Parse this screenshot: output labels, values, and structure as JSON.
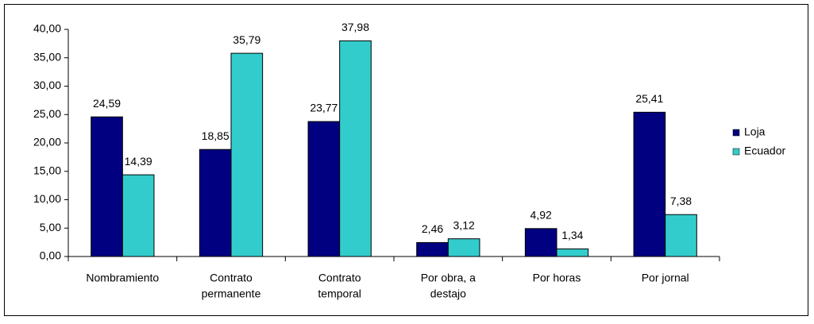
{
  "chart_data": {
    "type": "bar",
    "categories": [
      [
        "Nombramiento"
      ],
      [
        "Contrato",
        "permanente"
      ],
      [
        "Contrato",
        "temporal"
      ],
      [
        "Por obra, a",
        "destajo"
      ],
      [
        "Por horas"
      ],
      [
        "Por jornal"
      ]
    ],
    "series": [
      {
        "name": "Loja",
        "color": "#000080",
        "values": [
          24.59,
          18.85,
          23.77,
          2.46,
          4.92,
          25.41
        ],
        "value_labels": [
          "24,59",
          "18,85",
          "23,77",
          "2,46",
          "4,92",
          "25,41"
        ]
      },
      {
        "name": "Ecuador",
        "color": "#33cccc",
        "values": [
          14.39,
          35.79,
          37.98,
          3.12,
          1.34,
          7.38
        ],
        "value_labels": [
          "14,39",
          "35,79",
          "37,98",
          "3,12",
          "1,34",
          "7,38"
        ]
      }
    ],
    "ylim": [
      0,
      40
    ],
    "yticks": [
      {
        "value": 0,
        "label": "0,00"
      },
      {
        "value": 5,
        "label": "5,00"
      },
      {
        "value": 10,
        "label": "10,00"
      },
      {
        "value": 15,
        "label": "15,00"
      },
      {
        "value": 20,
        "label": "20,00"
      },
      {
        "value": 25,
        "label": "25,00"
      },
      {
        "value": 30,
        "label": "30,00"
      },
      {
        "value": 35,
        "label": "35,00"
      },
      {
        "value": 40,
        "label": "40,00"
      }
    ],
    "legend": "right"
  }
}
